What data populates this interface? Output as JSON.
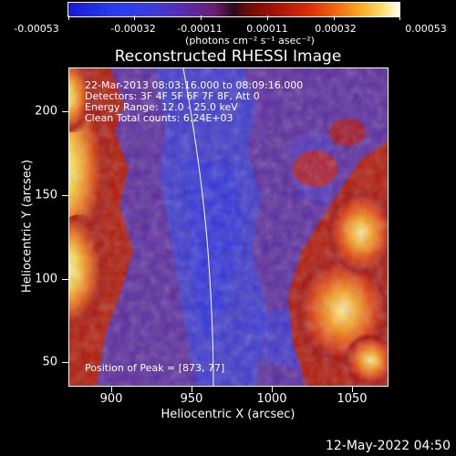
{
  "colorbar": {
    "ticks": [
      "-0.00053",
      "-0.00032",
      "-0.00011",
      "0.00011",
      "0.00032",
      "0.00053"
    ],
    "units": "(photons cm⁻² s⁻¹ asec⁻²)"
  },
  "title": "Reconstructed RHESSI Image",
  "info": {
    "line1": "22-Mar-2013 08:03:16.000 to 08:09:16.000",
    "line2": "Detectors: 3F 4F 5F 6F 7F 8F, Att 0",
    "line3": "Energy Range: 12.0 - 25.0 keV",
    "line4": "Clean     Total counts: 6.24E+03"
  },
  "peak": "Position of Peak = [873, 77]",
  "axes": {
    "x_title": "Heliocentric X (arcsec)",
    "y_title": "Heliocentric Y (arcsec)",
    "x_ticks": [
      "900",
      "950",
      "1000",
      "1050"
    ],
    "y_ticks": [
      "200",
      "150",
      "100",
      "50"
    ]
  },
  "timestamp": "12-May-2022 04:50"
}
